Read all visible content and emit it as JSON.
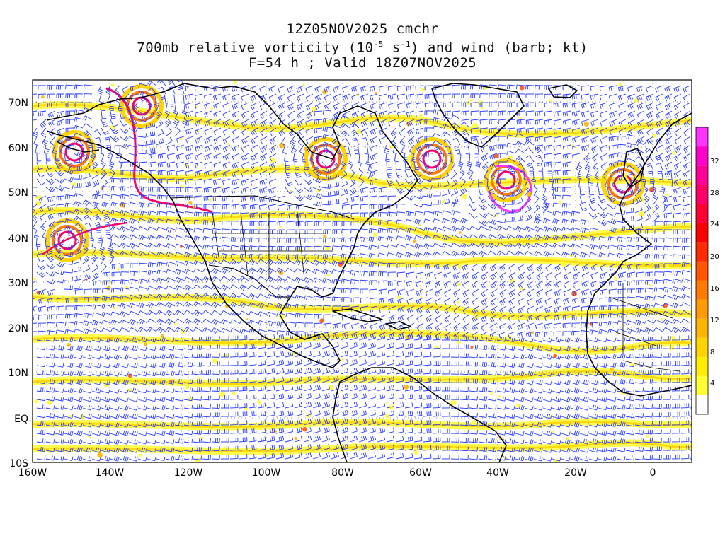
{
  "title": {
    "line1": "12Z05NOV2025 cmchr",
    "line2_pre": "700mb relative vorticity (10",
    "line2_exp1": "-5",
    "line2_mid": " s",
    "line2_exp2": "-1",
    "line2_post": ") and wind (barb; kt)",
    "line3": "F=54 h ; Valid 18Z07NOV2025"
  },
  "axes": {
    "lat_labels": [
      "70N",
      "60N",
      "50N",
      "40N",
      "30N",
      "20N",
      "10N",
      "EQ",
      "10S"
    ],
    "lon_labels": [
      "160W",
      "140W",
      "120W",
      "100W",
      "80W",
      "60W",
      "40W",
      "20W",
      "0"
    ]
  },
  "colorbar": {
    "labels": [
      "4",
      "8",
      "12",
      "16",
      "20",
      "24",
      "28",
      "32"
    ],
    "colors": [
      "#ffffff",
      "#ffff33",
      "#ffee00",
      "#ffd400",
      "#ffb400",
      "#ff9a00",
      "#ff7a00",
      "#ff5500",
      "#ff2a00",
      "#ff0000",
      "#ff0033",
      "#ff0066",
      "#ff0099",
      "#ff00cc",
      "#ff33ff"
    ]
  },
  "styles": {
    "barb_color": "#2b3bff",
    "coast_color": "#000000",
    "grid_color": "#9a9a9a"
  }
}
